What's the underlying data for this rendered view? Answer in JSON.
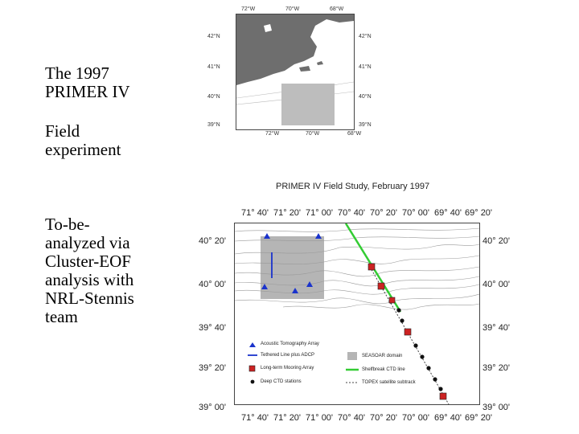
{
  "slide": {
    "text_block_1": "The 1997\nPRIMER IV",
    "text_block_2": "Field\nexperiment",
    "text_block_3": "To-be-\nanalyzed via\nCluster-EOF\nanalysis with\nNRL-Stennis\nteam"
  },
  "top_map": {
    "lon_labels_top": [
      "72°W",
      "70°W",
      "68°W"
    ],
    "lon_labels_bottom": [
      "72°W",
      "70°W",
      "68°W"
    ],
    "lat_labels_left": [
      "42°N",
      "41°N",
      "40°N",
      "39°N"
    ],
    "lat_labels_right": [
      "42°N",
      "41°N",
      "40°N",
      "39°N"
    ],
    "land_color": "#6e6e6e",
    "box_color": "#bdbdbd"
  },
  "main_map": {
    "title": "PRIMER IV Field Study, February 1997",
    "lon_labels_top": [
      "71° 40'",
      "71° 20'",
      "71° 00'",
      "70° 40'",
      "70° 20'",
      "70° 00'",
      "69° 40'",
      "69° 20'"
    ],
    "lon_labels_bottom": [
      "71° 40'",
      "71° 20'",
      "71° 00'",
      "70° 40'",
      "70° 20'",
      "70° 00'",
      "69° 40'",
      "69° 20'"
    ],
    "lat_labels_left": [
      "40° 20'",
      "40° 00'",
      "39° 40'",
      "39° 20'",
      "39° 00'"
    ],
    "lat_labels_right": [
      "40° 20'",
      "40° 00'",
      "39° 40'",
      "39° 20'",
      "39° 00'"
    ],
    "legend": {
      "acoustic": "Acoustic Tomography Array",
      "tethered": "Tethered Line plus ADCP",
      "mooring": "Long-term Mooring Array",
      "ctd": "Deep CTD stations",
      "seasoar": "SEASOAR domain",
      "shelfbreak": "Shelfbreak CTD line",
      "topex": "TOPEX satellite subtrack"
    },
    "colors": {
      "triangle": "#1a33cc",
      "mooring": "#cc2222",
      "ctd_line": "#33cc33",
      "seasoar": "#b5b5b5"
    }
  }
}
